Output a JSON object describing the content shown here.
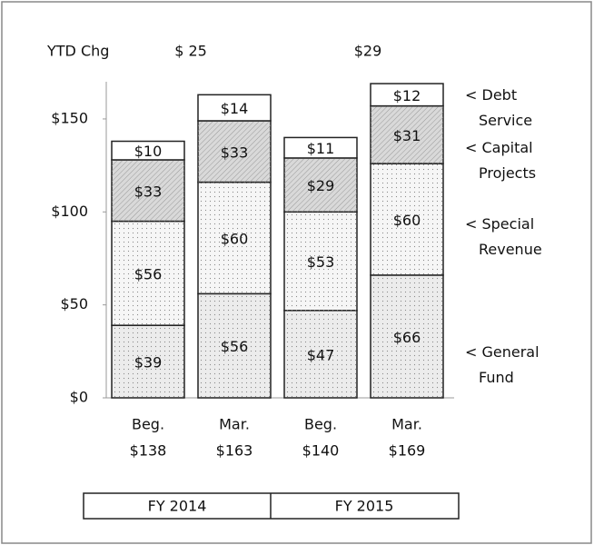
{
  "chart_data": {
    "type": "stacked_bar",
    "categories": [
      "Beg.",
      "Mar.",
      "Beg.",
      "Mar."
    ],
    "totals": [
      138,
      163,
      140,
      169
    ],
    "total_labels": [
      "$138",
      "$163",
      "$140",
      "$169"
    ],
    "groups": [
      "FY 2014",
      "FY 2015"
    ],
    "annotation": {
      "label": "YTD Chg",
      "values": [
        25,
        29
      ],
      "value_labels": [
        "$ 25",
        "$29"
      ]
    },
    "series": [
      {
        "name": "< General Fund",
        "color": "#ececec",
        "values": [
          39,
          56,
          47,
          66
        ],
        "value_labels": [
          "$39",
          "$56",
          "$47",
          "$66"
        ]
      },
      {
        "name": "< Special Revenue",
        "color": "#f6f6f6",
        "values": [
          56,
          60,
          53,
          60
        ],
        "value_labels": [
          "$56",
          "$60",
          "$53",
          "$60"
        ]
      },
      {
        "name": "< Capital Projects",
        "color": "#d9d9d9",
        "values": [
          33,
          33,
          29,
          31
        ],
        "value_labels": [
          "$33",
          "$33",
          "$29",
          "$31"
        ]
      },
      {
        "name": "< Debt Service",
        "color": "#ffffff",
        "values": [
          10,
          14,
          11,
          12
        ],
        "value_labels": [
          "$10",
          "$14",
          "$11",
          "$12"
        ]
      }
    ],
    "ylim": [
      0,
      170
    ],
    "yticks": [
      {
        "value": 0,
        "label": "$0"
      },
      {
        "value": 50,
        "label": "$50"
      },
      {
        "value": 100,
        "label": "$100"
      },
      {
        "value": 150,
        "label": "$150"
      }
    ]
  }
}
